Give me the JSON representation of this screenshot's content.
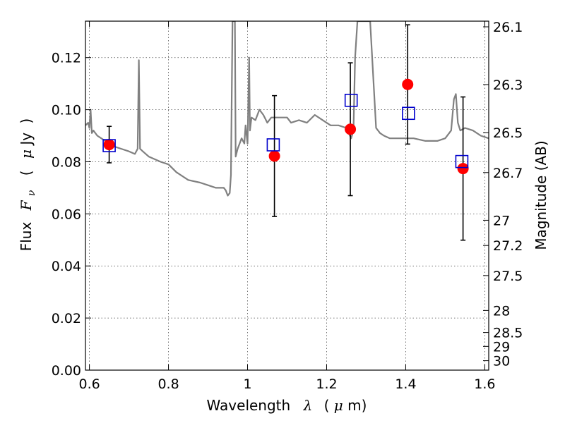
{
  "chart_data": {
    "type": "scatter",
    "xlabel": {
      "text": "Wavelength",
      "symbol": "λ",
      "unit_open": "(",
      "unit_mu": "μ",
      "unit_rest": "m)"
    },
    "ylabel": {
      "text": "Flux",
      "symbol": "F",
      "subscript": "ν",
      "unit_open": "(",
      "unit_mu": "μ",
      "unit_rest": "Jy",
      "unit_close": ")"
    },
    "y2label": "Magnitude (AB)",
    "xlim": [
      0.59,
      1.61
    ],
    "ylim": [
      0.0,
      0.134
    ],
    "xticks": [
      0.6,
      0.8,
      1.0,
      1.2,
      1.4,
      1.6
    ],
    "xtick_labels": [
      "0.6",
      "0.8",
      "1",
      "1.2",
      "1.4",
      "1.6"
    ],
    "yticks": [
      0.0,
      0.02,
      0.04,
      0.06,
      0.08,
      0.1,
      0.12
    ],
    "ytick_labels": [
      "0.00",
      "0.02",
      "0.04",
      "0.06",
      "0.08",
      "0.10",
      "0.12"
    ],
    "y2ticks": [
      26.1,
      26.3,
      26.5,
      26.7,
      27,
      27.2,
      27.5,
      28,
      28.5,
      29,
      30
    ],
    "y2tick_labels": [
      "26.1",
      "26.3",
      "26.5",
      "26.7",
      "27",
      "27.2",
      "27.5",
      "28",
      "28.5",
      "29",
      "30"
    ],
    "grid": true,
    "colors": {
      "model": "#808080",
      "observed": "#ff0000",
      "synthetic": "#0000cc",
      "errorbar": "#000000"
    },
    "series": [
      {
        "kind": "model-spectrum",
        "x": [
          0.59,
          0.597,
          0.6,
          0.603,
          0.606,
          0.61,
          0.62,
          0.63,
          0.64,
          0.66,
          0.68,
          0.7,
          0.715,
          0.722,
          0.725,
          0.728,
          0.735,
          0.75,
          0.78,
          0.8,
          0.82,
          0.85,
          0.88,
          0.9,
          0.92,
          0.94,
          0.945,
          0.95,
          0.955,
          0.958,
          0.962,
          0.964,
          0.968,
          0.97,
          0.975,
          0.985,
          0.992,
          0.995,
          1.0,
          1.004,
          1.006,
          1.01,
          1.02,
          1.03,
          1.04,
          1.05,
          1.06,
          1.08,
          1.1,
          1.11,
          1.13,
          1.15,
          1.17,
          1.19,
          1.21,
          1.23,
          1.25,
          1.262,
          1.268,
          1.272,
          1.278,
          1.285,
          1.295,
          1.31,
          1.325,
          1.335,
          1.345,
          1.36,
          1.38,
          1.4,
          1.42,
          1.45,
          1.48,
          1.5,
          1.515,
          1.522,
          1.527,
          1.532,
          1.538,
          1.55,
          1.57,
          1.59,
          1.61
        ],
        "y": [
          0.094,
          0.095,
          0.093,
          0.1,
          0.091,
          0.092,
          0.09,
          0.089,
          0.088,
          0.086,
          0.085,
          0.084,
          0.083,
          0.085,
          0.119,
          0.085,
          0.084,
          0.082,
          0.08,
          0.079,
          0.076,
          0.073,
          0.072,
          0.071,
          0.07,
          0.07,
          0.069,
          0.067,
          0.068,
          0.075,
          0.134,
          0.134,
          0.134,
          0.082,
          0.085,
          0.089,
          0.087,
          0.094,
          0.087,
          0.12,
          0.092,
          0.097,
          0.096,
          0.1,
          0.098,
          0.095,
          0.097,
          0.097,
          0.097,
          0.095,
          0.096,
          0.095,
          0.098,
          0.096,
          0.094,
          0.094,
          0.093,
          0.089,
          0.092,
          0.12,
          0.134,
          0.134,
          0.134,
          0.134,
          0.093,
          0.091,
          0.09,
          0.089,
          0.089,
          0.089,
          0.089,
          0.088,
          0.088,
          0.089,
          0.092,
          0.104,
          0.106,
          0.095,
          0.092,
          0.093,
          0.092,
          0.09,
          0.089
        ]
      },
      {
        "kind": "observed",
        "marker": "circle",
        "x": [
          0.65,
          1.068,
          1.26,
          1.405,
          1.545
        ],
        "y": [
          0.0866,
          0.0822,
          0.0925,
          0.1097,
          0.0774
        ],
        "yerr": [
          0.007,
          0.0232,
          0.0255,
          0.0229,
          0.0275
        ]
      },
      {
        "kind": "synthetic",
        "marker": "square",
        "x": [
          0.65,
          1.065,
          1.262,
          1.407,
          1.542
        ],
        "y": [
          0.0862,
          0.0865,
          0.1036,
          0.0986,
          0.0801
        ]
      }
    ]
  }
}
